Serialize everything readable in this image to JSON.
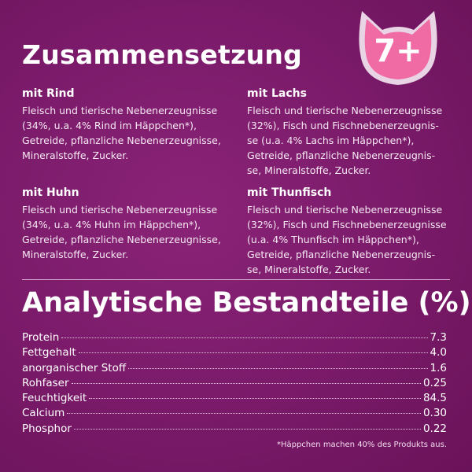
{
  "header": {
    "title": "Zusammensetzung",
    "badge": "7+",
    "badge_color": "#f06aa4"
  },
  "compositions": [
    {
      "title": "mit Rind",
      "lines": [
        "Fleisch und tierische Nebenerzeugnisse",
        "(34%, u.a. 4% Rind im Häppchen*),",
        "Getreide, pflanzliche Nebenerzeugnisse,",
        "Mineralstoffe, Zucker."
      ]
    },
    {
      "title": "mit Lachs",
      "lines": [
        "Fleisch und tierische Nebenerzeugnisse",
        "(32%), Fisch und Fischnebenerzeugnis-",
        "se (u.a. 4% Lachs im Häppchen*),",
        "Getreide, pflanzliche Nebenerzeugnis-",
        "se, Mineralstoffe, Zucker."
      ]
    },
    {
      "title": "mit Huhn",
      "lines": [
        "Fleisch und tierische Nebenerzeugnisse",
        "(34%, u.a. 4% Huhn im Häppchen*),",
        "Getreide, pflanzliche Nebenerzeugnisse,",
        "Mineralstoffe, Zucker."
      ]
    },
    {
      "title": "mit Thunfisch",
      "lines": [
        "Fleisch und tierische Nebenerzeugnisse",
        "(32%), Fisch und Fischnebenerzeugnisse",
        "(u.a. 4% Thunfisch im Häppchen*),",
        "Getreide, pflanzliche Nebenerzeugnis-",
        "se, Mineralstoffe, Zucker."
      ]
    }
  ],
  "analysis": {
    "title": "Analytische Bestandteile (%)",
    "rows": [
      {
        "label": "Protein",
        "value": "7.3"
      },
      {
        "label": "Fettgehalt",
        "value": "4.0"
      },
      {
        "label": "anorganischer Stoff",
        "value": "1.6"
      },
      {
        "label": "Rohfaser",
        "value": "0.25"
      },
      {
        "label": "Feuchtigkeit",
        "value": "84.5"
      },
      {
        "label": "Calcium",
        "value": "0.30"
      },
      {
        "label": "Phosphor",
        "value": "0.22"
      }
    ]
  },
  "footnote": "*Häppchen machen 40% des Produkts aus."
}
